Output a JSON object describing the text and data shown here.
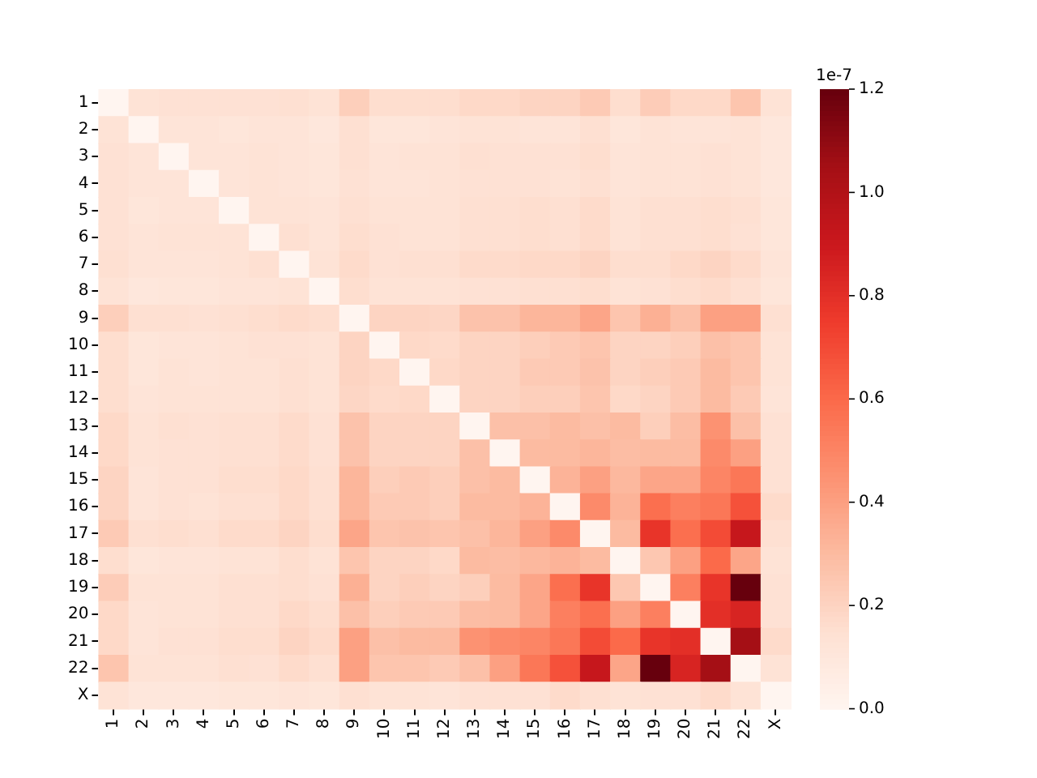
{
  "chart_data": {
    "type": "heatmap",
    "categories": [
      "1",
      "2",
      "3",
      "4",
      "5",
      "6",
      "7",
      "8",
      "9",
      "10",
      "11",
      "12",
      "13",
      "14",
      "15",
      "16",
      "17",
      "18",
      "19",
      "20",
      "21",
      "22",
      "X"
    ],
    "y_categories": [
      "1",
      "2",
      "3",
      "4",
      "5",
      "6",
      "7",
      "8",
      "9",
      "10",
      "11",
      "12",
      "13",
      "14",
      "15",
      "16",
      "17",
      "18",
      "19",
      "20",
      "21",
      "22",
      "X"
    ],
    "cells": [
      [
        0,
        0.13,
        0.14,
        0.14,
        0.14,
        0.14,
        0.15,
        0.13,
        0.22,
        0.16,
        0.16,
        0.16,
        0.18,
        0.18,
        0.2,
        0.2,
        0.24,
        0.16,
        0.23,
        0.18,
        0.18,
        0.26,
        0.13
      ],
      [
        0.13,
        0,
        0.12,
        0.12,
        0.11,
        0.12,
        0.12,
        0.1,
        0.15,
        0.11,
        0.11,
        0.12,
        0.13,
        0.13,
        0.12,
        0.12,
        0.15,
        0.11,
        0.13,
        0.12,
        0.12,
        0.13,
        0.1
      ],
      [
        0.14,
        0.12,
        0,
        0.12,
        0.12,
        0.13,
        0.12,
        0.11,
        0.15,
        0.12,
        0.13,
        0.13,
        0.15,
        0.14,
        0.14,
        0.14,
        0.16,
        0.12,
        0.13,
        0.13,
        0.14,
        0.13,
        0.1
      ],
      [
        0.14,
        0.12,
        0.12,
        0,
        0.12,
        0.13,
        0.12,
        0.11,
        0.14,
        0.12,
        0.12,
        0.13,
        0.14,
        0.14,
        0.14,
        0.13,
        0.15,
        0.12,
        0.13,
        0.13,
        0.14,
        0.13,
        0.1
      ],
      [
        0.14,
        0.11,
        0.12,
        0.12,
        0,
        0.13,
        0.13,
        0.12,
        0.15,
        0.13,
        0.13,
        0.13,
        0.15,
        0.15,
        0.16,
        0.15,
        0.17,
        0.13,
        0.15,
        0.15,
        0.16,
        0.15,
        0.11
      ],
      [
        0.14,
        0.12,
        0.13,
        0.13,
        0.13,
        0,
        0.15,
        0.12,
        0.16,
        0.14,
        0.13,
        0.13,
        0.15,
        0.15,
        0.16,
        0.15,
        0.17,
        0.13,
        0.15,
        0.15,
        0.16,
        0.14,
        0.11
      ],
      [
        0.15,
        0.12,
        0.12,
        0.12,
        0.13,
        0.15,
        0,
        0.13,
        0.17,
        0.14,
        0.15,
        0.15,
        0.17,
        0.17,
        0.18,
        0.18,
        0.2,
        0.16,
        0.16,
        0.18,
        0.2,
        0.17,
        0.12
      ],
      [
        0.13,
        0.1,
        0.11,
        0.11,
        0.12,
        0.12,
        0.13,
        0,
        0.16,
        0.13,
        0.13,
        0.13,
        0.14,
        0.14,
        0.15,
        0.15,
        0.16,
        0.13,
        0.14,
        0.16,
        0.17,
        0.15,
        0.11
      ],
      [
        0.22,
        0.15,
        0.15,
        0.14,
        0.15,
        0.16,
        0.17,
        0.16,
        0,
        0.2,
        0.2,
        0.19,
        0.27,
        0.27,
        0.32,
        0.32,
        0.38,
        0.26,
        0.34,
        0.28,
        0.4,
        0.4,
        0.15
      ],
      [
        0.16,
        0.11,
        0.12,
        0.12,
        0.13,
        0.14,
        0.14,
        0.13,
        0.2,
        0,
        0.18,
        0.17,
        0.2,
        0.2,
        0.22,
        0.24,
        0.26,
        0.2,
        0.2,
        0.22,
        0.28,
        0.26,
        0.13
      ],
      [
        0.16,
        0.11,
        0.13,
        0.12,
        0.13,
        0.13,
        0.15,
        0.13,
        0.2,
        0.18,
        0,
        0.18,
        0.2,
        0.2,
        0.24,
        0.24,
        0.27,
        0.2,
        0.22,
        0.24,
        0.3,
        0.26,
        0.13
      ],
      [
        0.16,
        0.12,
        0.13,
        0.13,
        0.13,
        0.13,
        0.15,
        0.13,
        0.19,
        0.17,
        0.18,
        0,
        0.2,
        0.2,
        0.22,
        0.22,
        0.26,
        0.18,
        0.2,
        0.24,
        0.3,
        0.24,
        0.12
      ],
      [
        0.18,
        0.13,
        0.15,
        0.14,
        0.15,
        0.15,
        0.17,
        0.14,
        0.27,
        0.2,
        0.2,
        0.2,
        0,
        0.28,
        0.28,
        0.3,
        0.28,
        0.3,
        0.22,
        0.29,
        0.45,
        0.28,
        0.14
      ],
      [
        0.18,
        0.13,
        0.14,
        0.14,
        0.15,
        0.15,
        0.17,
        0.14,
        0.27,
        0.2,
        0.2,
        0.2,
        0.28,
        0,
        0.3,
        0.3,
        0.32,
        0.29,
        0.3,
        0.3,
        0.48,
        0.4,
        0.14
      ],
      [
        0.2,
        0.12,
        0.14,
        0.14,
        0.16,
        0.16,
        0.18,
        0.15,
        0.32,
        0.22,
        0.24,
        0.22,
        0.28,
        0.3,
        0,
        0.33,
        0.4,
        0.31,
        0.38,
        0.38,
        0.5,
        0.55,
        0.14
      ],
      [
        0.2,
        0.12,
        0.14,
        0.13,
        0.15,
        0.15,
        0.18,
        0.15,
        0.32,
        0.24,
        0.24,
        0.22,
        0.3,
        0.3,
        0.33,
        0,
        0.48,
        0.33,
        0.58,
        0.52,
        0.55,
        0.68,
        0.17
      ],
      [
        0.24,
        0.15,
        0.16,
        0.15,
        0.17,
        0.17,
        0.2,
        0.16,
        0.38,
        0.26,
        0.27,
        0.26,
        0.28,
        0.32,
        0.4,
        0.48,
        0,
        0.3,
        0.78,
        0.58,
        0.7,
        0.92,
        0.15
      ],
      [
        0.16,
        0.11,
        0.12,
        0.12,
        0.13,
        0.13,
        0.16,
        0.13,
        0.26,
        0.2,
        0.2,
        0.18,
        0.3,
        0.29,
        0.31,
        0.33,
        0.3,
        0,
        0.25,
        0.4,
        0.6,
        0.38,
        0.13
      ],
      [
        0.23,
        0.13,
        0.13,
        0.13,
        0.15,
        0.15,
        0.16,
        0.14,
        0.34,
        0.2,
        0.22,
        0.2,
        0.22,
        0.3,
        0.38,
        0.58,
        0.78,
        0.25,
        0,
        0.52,
        0.78,
        1.2,
        0.14
      ],
      [
        0.18,
        0.12,
        0.13,
        0.13,
        0.15,
        0.15,
        0.18,
        0.16,
        0.28,
        0.22,
        0.24,
        0.24,
        0.29,
        0.3,
        0.38,
        0.52,
        0.58,
        0.4,
        0.52,
        0,
        0.8,
        0.85,
        0.14
      ],
      [
        0.18,
        0.12,
        0.14,
        0.14,
        0.16,
        0.16,
        0.2,
        0.17,
        0.4,
        0.28,
        0.3,
        0.3,
        0.45,
        0.48,
        0.5,
        0.55,
        0.7,
        0.6,
        0.78,
        0.8,
        0,
        1.05,
        0.17
      ],
      [
        0.26,
        0.13,
        0.13,
        0.13,
        0.15,
        0.14,
        0.17,
        0.15,
        0.4,
        0.26,
        0.26,
        0.24,
        0.28,
        0.4,
        0.55,
        0.68,
        0.92,
        0.38,
        1.2,
        0.85,
        1.05,
        0,
        0.13
      ],
      [
        0.13,
        0.1,
        0.1,
        0.1,
        0.11,
        0.11,
        0.12,
        0.11,
        0.15,
        0.13,
        0.13,
        0.12,
        0.14,
        0.14,
        0.14,
        0.17,
        0.15,
        0.13,
        0.14,
        0.14,
        0.17,
        0.13,
        0
      ]
    ],
    "clim": [
      0,
      1.2
    ],
    "cticks": [
      {
        "value": 0,
        "label": "0.0"
      },
      0.2,
      0.4,
      0.6,
      0.8,
      {
        "value": 1,
        "label": "1.0"
      },
      1.2
    ],
    "annotations": [
      "1e-7"
    ]
  }
}
